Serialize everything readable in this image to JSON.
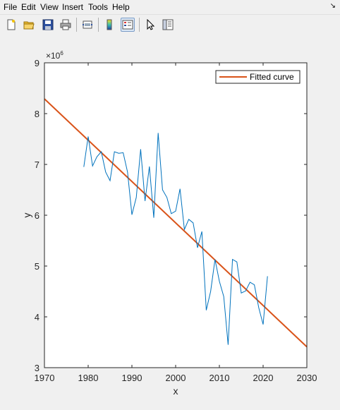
{
  "menu": {
    "items": [
      "File",
      "Edit",
      "View",
      "Insert",
      "Tools",
      "Help"
    ],
    "dock_icon": "dock-arrow-icon"
  },
  "toolbar": {
    "buttons": [
      {
        "name": "new-figure-button",
        "icon": "new-file-icon"
      },
      {
        "name": "open-file-button",
        "icon": "folder-icon"
      },
      {
        "name": "save-figure-button",
        "icon": "save-icon"
      },
      {
        "name": "print-figure-button",
        "icon": "printer-icon"
      },
      {
        "name": "link-plot-button",
        "icon": "link-plot-icon"
      },
      {
        "name": "insert-colorbar-button",
        "icon": "colorbar-icon"
      },
      {
        "name": "insert-legend-button",
        "icon": "legend-icon",
        "active": true
      },
      {
        "name": "edit-plot-button",
        "icon": "pointer-icon"
      },
      {
        "name": "property-inspector-button",
        "icon": "property-inspector-icon"
      }
    ]
  },
  "figure": {
    "background": "#ffffff",
    "data_color": "#0072bd",
    "fit_color": "#d95319"
  },
  "chart_data": {
    "type": "line",
    "title": "",
    "xlabel": "x",
    "ylabel": "y",
    "xlim": [
      1970,
      2030
    ],
    "ylim": [
      3,
      9
    ],
    "y_exponent_label": "×10",
    "y_exponent_power": "6",
    "y_scale": 1000000,
    "xticks": [
      "1970",
      "1980",
      "1990",
      "2000",
      "2010",
      "2020",
      "2030"
    ],
    "yticks": [
      "3",
      "4",
      "5",
      "6",
      "7",
      "8",
      "9"
    ],
    "grid": false,
    "legend": {
      "entries": [
        "Fitted curve"
      ],
      "location": "top-right"
    },
    "series": [
      {
        "x": [
          1979,
          1980,
          1981,
          1982,
          1983,
          1984,
          1985,
          1986,
          1987,
          1988,
          1989,
          1990,
          1991,
          1992,
          1993,
          1994,
          1995,
          1996,
          1997,
          1998,
          1999,
          2000,
          2001,
          2002,
          2003,
          2004,
          2005,
          2006,
          2007,
          2008,
          2009,
          2010,
          2011,
          2012,
          2013,
          2014,
          2015,
          2016,
          2017,
          2018,
          2019,
          2020,
          2021
        ],
        "y": [
          6.95,
          7.55,
          6.97,
          7.15,
          7.25,
          6.85,
          6.68,
          7.25,
          7.22,
          7.23,
          6.85,
          6.01,
          6.35,
          7.3,
          6.28,
          6.96,
          5.95,
          7.62,
          6.5,
          6.35,
          6.03,
          6.08,
          6.52,
          5.72,
          5.92,
          5.85,
          5.36,
          5.68,
          4.13,
          4.5,
          5.13,
          4.7,
          4.4,
          3.45,
          5.13,
          5.08,
          4.47,
          4.51,
          4.68,
          4.63,
          4.18,
          3.85,
          4.8
        ]
      },
      {
        "name": "Fitted curve",
        "x": [
          1970,
          2030
        ],
        "y": [
          8.29,
          3.41
        ]
      }
    ]
  }
}
